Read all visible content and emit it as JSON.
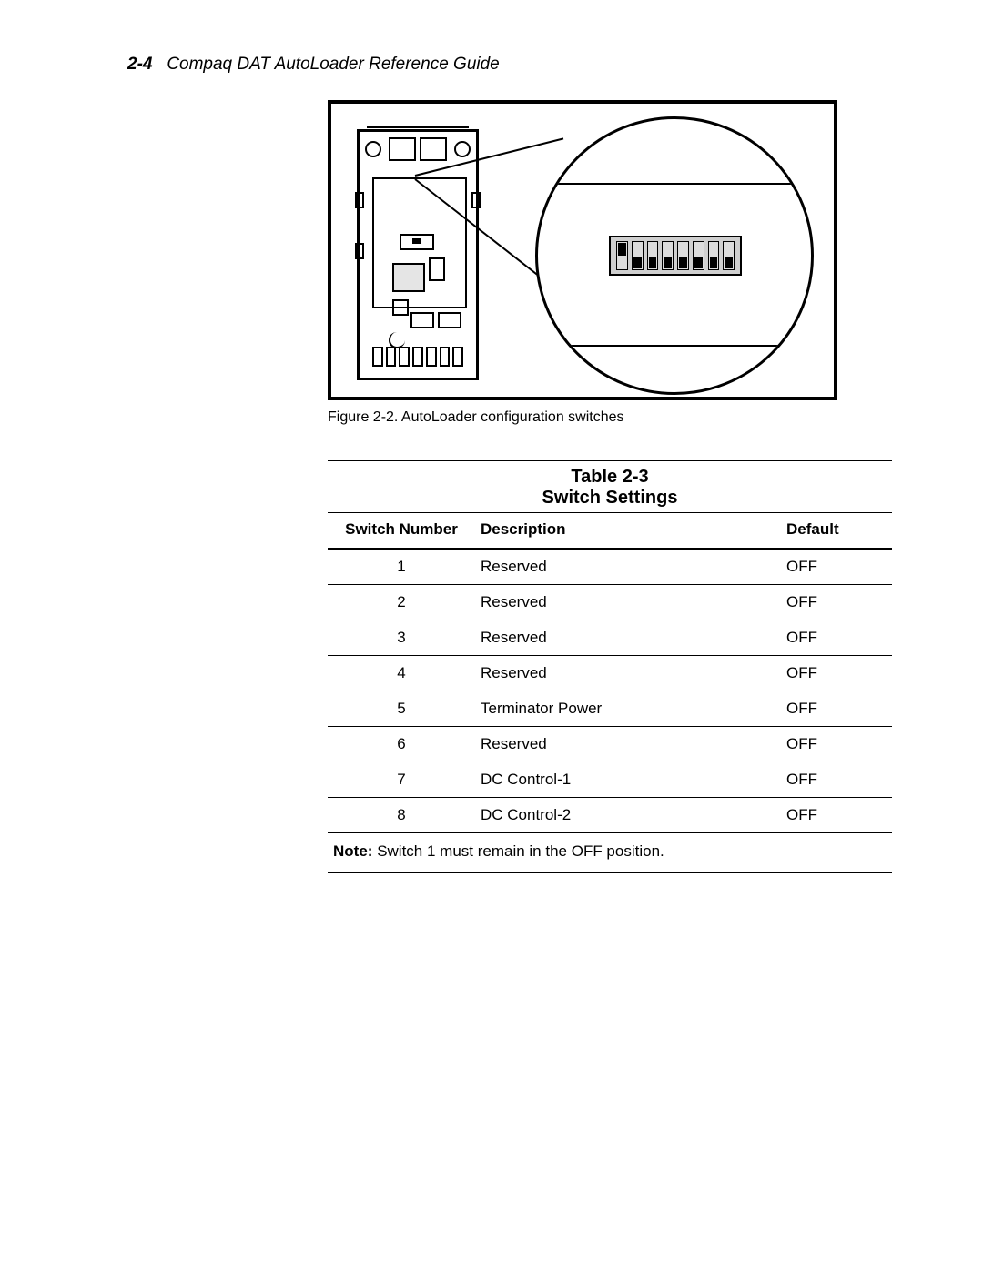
{
  "header": {
    "page_number": "2-4",
    "title": "Compaq DAT AutoLoader Reference Guide"
  },
  "figure": {
    "caption": "Figure 2-2.  AutoLoader configuration switches",
    "dip_switch_count": 8,
    "dip_switch_positions": [
      "up",
      "down",
      "down",
      "down",
      "down",
      "down",
      "down",
      "down"
    ],
    "colors": {
      "border": "#000000",
      "dip_body": "#cfcfcf",
      "dip_slot": "#dcdcdc",
      "dip_toggle": "#000000",
      "chip_fill": "#e5e5e5",
      "background": "#ffffff"
    }
  },
  "table": {
    "number": "Table 2-3",
    "title": "Switch Settings",
    "columns": [
      "Switch Number",
      "Description",
      "Default"
    ],
    "rows": [
      {
        "num": "1",
        "desc": "Reserved",
        "def": "OFF"
      },
      {
        "num": "2",
        "desc": "Reserved",
        "def": "OFF"
      },
      {
        "num": "3",
        "desc": "Reserved",
        "def": "OFF"
      },
      {
        "num": "4",
        "desc": "Reserved",
        "def": "OFF"
      },
      {
        "num": "5",
        "desc": "Terminator Power",
        "def": "OFF"
      },
      {
        "num": "6",
        "desc": "Reserved",
        "def": "OFF"
      },
      {
        "num": "7",
        "desc": "DC Control-1",
        "def": "OFF"
      },
      {
        "num": "8",
        "desc": "DC Control-2",
        "def": "OFF"
      }
    ],
    "note_label": "Note:",
    "note_text": "Switch 1 must remain in the OFF position."
  }
}
